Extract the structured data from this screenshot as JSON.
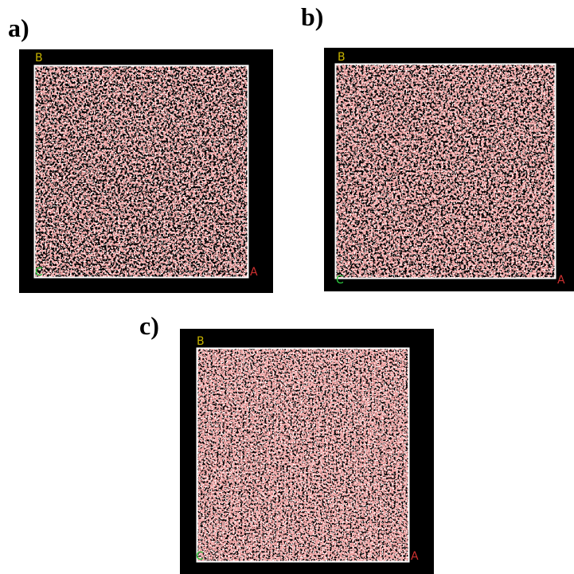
{
  "panels": [
    {
      "label": "a)",
      "axes": {
        "top_left": "B",
        "bottom_left": "C",
        "bottom_right": "A"
      }
    },
    {
      "label": "b)",
      "axes": {
        "top_left": "B",
        "bottom_left": "C",
        "bottom_right": "A"
      }
    },
    {
      "label": "c)",
      "axes": {
        "top_left": "B",
        "bottom_left": "C",
        "bottom_right": "A"
      }
    }
  ]
}
